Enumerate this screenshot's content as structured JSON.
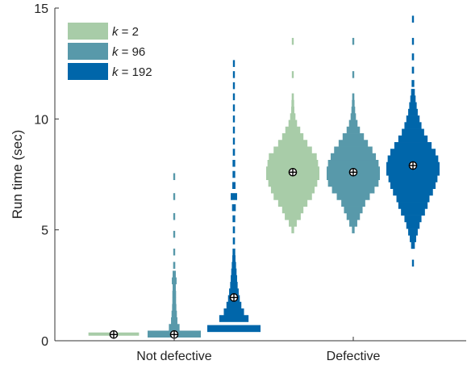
{
  "chart_data": {
    "type": "violin",
    "ylabel": "Run time (sec)",
    "xlabel": "",
    "ylim": [
      0,
      15
    ],
    "yticks": [
      0,
      5,
      10,
      15
    ],
    "categories": [
      "Not defective",
      "Defective"
    ],
    "grid": false,
    "legend": {
      "placement": "top-left",
      "entries": [
        {
          "prefix": "k",
          "label": " = 2"
        },
        {
          "prefix": "k",
          "label": " = 96"
        },
        {
          "prefix": "k",
          "label": " = 192"
        }
      ]
    },
    "series": [
      {
        "name": "k = 2",
        "color": "#a8cca8",
        "groups": [
          {
            "category": "Not defective",
            "median": 0.28,
            "range": [
              0.2,
              0.4
            ],
            "bins": [
              {
                "y": 0.3,
                "halfwidth": 0.95
              }
            ]
          },
          {
            "category": "Defective",
            "median": 7.6,
            "range": [
              4.9,
              13.6
            ],
            "bins": [
              {
                "y": 5.0,
                "halfwidth": 0.05
              },
              {
                "y": 5.3,
                "halfwidth": 0.15
              },
              {
                "y": 5.6,
                "halfwidth": 0.3
              },
              {
                "y": 5.9,
                "halfwidth": 0.4
              },
              {
                "y": 6.2,
                "halfwidth": 0.55
              },
              {
                "y": 6.5,
                "halfwidth": 0.72
              },
              {
                "y": 6.8,
                "halfwidth": 0.82
              },
              {
                "y": 7.1,
                "halfwidth": 0.92
              },
              {
                "y": 7.4,
                "halfwidth": 1.0
              },
              {
                "y": 7.7,
                "halfwidth": 1.0
              },
              {
                "y": 8.0,
                "halfwidth": 0.95
              },
              {
                "y": 8.3,
                "halfwidth": 0.9
              },
              {
                "y": 8.6,
                "halfwidth": 0.72
              },
              {
                "y": 8.9,
                "halfwidth": 0.55
              },
              {
                "y": 9.2,
                "halfwidth": 0.4
              },
              {
                "y": 9.5,
                "halfwidth": 0.28
              },
              {
                "y": 9.8,
                "halfwidth": 0.16
              },
              {
                "y": 10.1,
                "halfwidth": 0.1
              },
              {
                "y": 10.4,
                "halfwidth": 0.06
              },
              {
                "y": 10.7,
                "halfwidth": 0.05
              },
              {
                "y": 11.0,
                "halfwidth": 0.04
              },
              {
                "y": 12.0,
                "halfwidth": 0.03
              },
              {
                "y": 13.5,
                "halfwidth": 0.03
              }
            ]
          }
        ]
      },
      {
        "name": "k = 96",
        "color": "#5899aa",
        "groups": [
          {
            "category": "Not defective",
            "median": 0.28,
            "range": [
              0.1,
              7.8
            ],
            "bins": [
              {
                "y": 0.3,
                "halfwidth": 1.0
              },
              {
                "y": 0.6,
                "halfwidth": 0.2
              },
              {
                "y": 0.9,
                "halfwidth": 0.12
              },
              {
                "y": 1.2,
                "halfwidth": 0.1
              },
              {
                "y": 1.5,
                "halfwidth": 0.08
              },
              {
                "y": 1.8,
                "halfwidth": 0.07
              },
              {
                "y": 2.1,
                "halfwidth": 0.07
              },
              {
                "y": 2.4,
                "halfwidth": 0.06
              },
              {
                "y": 2.7,
                "halfwidth": 0.09
              },
              {
                "y": 3.0,
                "halfwidth": 0.06
              },
              {
                "y": 3.4,
                "halfwidth": 0.04
              },
              {
                "y": 4.0,
                "halfwidth": 0.03
              },
              {
                "y": 4.8,
                "halfwidth": 0.03
              },
              {
                "y": 5.6,
                "halfwidth": 0.025
              },
              {
                "y": 6.5,
                "halfwidth": 0.02
              },
              {
                "y": 7.4,
                "halfwidth": 0.02
              }
            ]
          },
          {
            "category": "Defective",
            "median": 7.6,
            "range": [
              4.9,
              13.6
            ],
            "bins": [
              {
                "y": 5.0,
                "halfwidth": 0.05
              },
              {
                "y": 5.3,
                "halfwidth": 0.15
              },
              {
                "y": 5.6,
                "halfwidth": 0.25
              },
              {
                "y": 5.9,
                "halfwidth": 0.35
              },
              {
                "y": 6.2,
                "halfwidth": 0.45
              },
              {
                "y": 6.5,
                "halfwidth": 0.62
              },
              {
                "y": 6.8,
                "halfwidth": 0.8
              },
              {
                "y": 7.1,
                "halfwidth": 0.95
              },
              {
                "y": 7.4,
                "halfwidth": 1.0
              },
              {
                "y": 7.7,
                "halfwidth": 1.0
              },
              {
                "y": 8.0,
                "halfwidth": 0.95
              },
              {
                "y": 8.3,
                "halfwidth": 0.85
              },
              {
                "y": 8.6,
                "halfwidth": 0.72
              },
              {
                "y": 8.9,
                "halfwidth": 0.55
              },
              {
                "y": 9.2,
                "halfwidth": 0.4
              },
              {
                "y": 9.5,
                "halfwidth": 0.25
              },
              {
                "y": 9.8,
                "halfwidth": 0.16
              },
              {
                "y": 10.1,
                "halfwidth": 0.1
              },
              {
                "y": 10.4,
                "halfwidth": 0.07
              },
              {
                "y": 10.7,
                "halfwidth": 0.05
              },
              {
                "y": 11.0,
                "halfwidth": 0.04
              },
              {
                "y": 12.0,
                "halfwidth": 0.03
              },
              {
                "y": 13.5,
                "halfwidth": 0.03
              }
            ]
          }
        ]
      },
      {
        "name": "k = 192",
        "color": "#0066aa",
        "groups": [
          {
            "category": "Not defective",
            "median": 1.95,
            "range": [
              0.3,
              12.8
            ],
            "bins": [
              {
                "y": 0.55,
                "halfwidth": 1.0
              },
              {
                "y": 1.0,
                "halfwidth": 0.55
              },
              {
                "y": 1.3,
                "halfwidth": 0.38
              },
              {
                "y": 1.6,
                "halfwidth": 0.28
              },
              {
                "y": 1.9,
                "halfwidth": 0.22
              },
              {
                "y": 2.2,
                "halfwidth": 0.18
              },
              {
                "y": 2.5,
                "halfwidth": 0.14
              },
              {
                "y": 2.8,
                "halfwidth": 0.12
              },
              {
                "y": 3.1,
                "halfwidth": 0.1
              },
              {
                "y": 3.4,
                "halfwidth": 0.08
              },
              {
                "y": 3.7,
                "halfwidth": 0.06
              },
              {
                "y": 4.0,
                "halfwidth": 0.05
              },
              {
                "y": 4.5,
                "halfwidth": 0.04
              },
              {
                "y": 5.0,
                "halfwidth": 0.04
              },
              {
                "y": 5.5,
                "halfwidth": 0.05
              },
              {
                "y": 6.0,
                "halfwidth": 0.07
              },
              {
                "y": 6.5,
                "halfwidth": 0.12
              },
              {
                "y": 7.0,
                "halfwidth": 0.06
              },
              {
                "y": 7.5,
                "halfwidth": 0.05
              },
              {
                "y": 8.0,
                "halfwidth": 0.05
              },
              {
                "y": 8.5,
                "halfwidth": 0.04
              },
              {
                "y": 9.0,
                "halfwidth": 0.03
              },
              {
                "y": 9.5,
                "halfwidth": 0.03
              },
              {
                "y": 10.0,
                "halfwidth": 0.025
              },
              {
                "y": 10.5,
                "halfwidth": 0.02
              },
              {
                "y": 11.0,
                "halfwidth": 0.02
              },
              {
                "y": 11.5,
                "halfwidth": 0.02
              },
              {
                "y": 12.0,
                "halfwidth": 0.02
              },
              {
                "y": 12.5,
                "halfwidth": 0.02
              }
            ]
          },
          {
            "category": "Defective",
            "median": 7.9,
            "range": [
              3.4,
              14.6
            ],
            "bins": [
              {
                "y": 3.5,
                "halfwidth": 0.03
              },
              {
                "y": 4.3,
                "halfwidth": 0.07
              },
              {
                "y": 4.6,
                "halfwidth": 0.12
              },
              {
                "y": 4.9,
                "halfwidth": 0.18
              },
              {
                "y": 5.2,
                "halfwidth": 0.25
              },
              {
                "y": 5.5,
                "halfwidth": 0.32
              },
              {
                "y": 5.8,
                "halfwidth": 0.45
              },
              {
                "y": 6.1,
                "halfwidth": 0.55
              },
              {
                "y": 6.4,
                "halfwidth": 0.62
              },
              {
                "y": 6.7,
                "halfwidth": 0.75
              },
              {
                "y": 7.0,
                "halfwidth": 0.85
              },
              {
                "y": 7.3,
                "halfwidth": 0.92
              },
              {
                "y": 7.6,
                "halfwidth": 1.0
              },
              {
                "y": 7.9,
                "halfwidth": 1.0
              },
              {
                "y": 8.2,
                "halfwidth": 0.95
              },
              {
                "y": 8.5,
                "halfwidth": 0.85
              },
              {
                "y": 8.8,
                "halfwidth": 0.7
              },
              {
                "y": 9.1,
                "halfwidth": 0.55
              },
              {
                "y": 9.4,
                "halfwidth": 0.42
              },
              {
                "y": 9.7,
                "halfwidth": 0.32
              },
              {
                "y": 10.0,
                "halfwidth": 0.25
              },
              {
                "y": 10.3,
                "halfwidth": 0.18
              },
              {
                "y": 10.6,
                "halfwidth": 0.14
              },
              {
                "y": 10.9,
                "halfwidth": 0.1
              },
              {
                "y": 11.2,
                "halfwidth": 0.07
              },
              {
                "y": 11.6,
                "halfwidth": 0.05
              },
              {
                "y": 12.2,
                "halfwidth": 0.04
              },
              {
                "y": 12.8,
                "halfwidth": 0.04
              },
              {
                "y": 13.5,
                "halfwidth": 0.03
              },
              {
                "y": 14.5,
                "halfwidth": 0.03
              }
            ]
          }
        ]
      }
    ]
  }
}
